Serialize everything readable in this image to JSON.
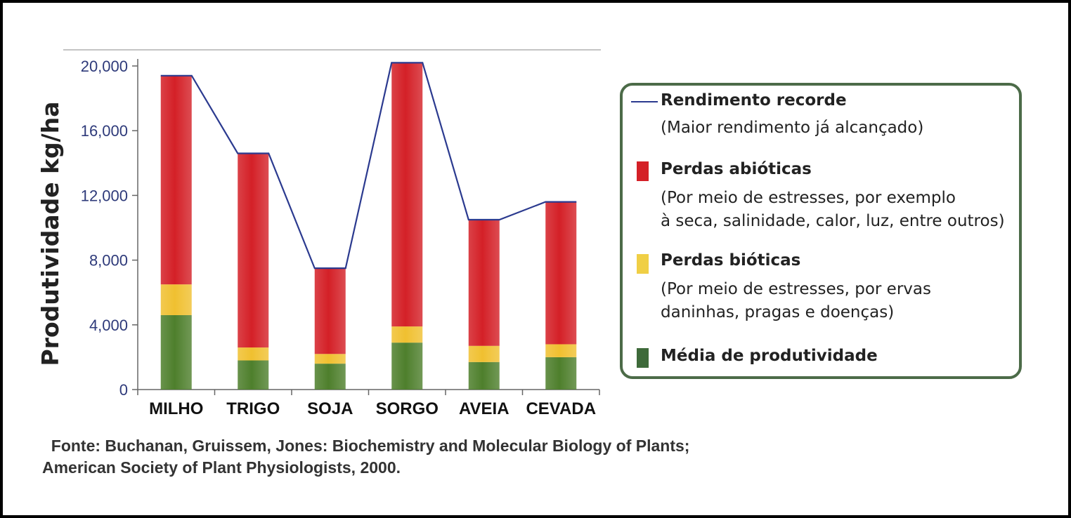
{
  "chart_data": {
    "type": "bar",
    "stacked": true,
    "categories": [
      "MILHO",
      "TRIGO",
      "SOJA",
      "SORGO",
      "AVEIA",
      "CEVADA"
    ],
    "series": [
      {
        "name": "Média de produtividade",
        "color": "#4e7f2c",
        "values": [
          4600,
          1800,
          1600,
          2900,
          1700,
          2000
        ]
      },
      {
        "name": "Perdas bióticas",
        "color": "#f0c030",
        "values": [
          1900,
          800,
          600,
          1000,
          1000,
          800
        ]
      },
      {
        "name": "Perdas abióticas",
        "color": "#d42027",
        "values": [
          12900,
          12000,
          5300,
          16300,
          7800,
          8800
        ]
      }
    ],
    "line": {
      "name": "Rendimento recorde",
      "color": "#2b3a8f",
      "values": [
        19400,
        14600,
        7500,
        20200,
        10500,
        11600
      ]
    },
    "ylabel": "Produtividade kg/ha",
    "ylim": [
      0,
      20000
    ],
    "yticks": [
      "0",
      "4,000",
      "8,000",
      "12,000",
      "16,000",
      "20,000"
    ],
    "ytick_values": [
      0,
      4000,
      8000,
      12000,
      16000,
      20000
    ]
  },
  "legend": {
    "record_title": "Rendimento recorde",
    "record_desc": "(Maior rendimento já alcançado)",
    "abiotic_title": "Perdas abióticas",
    "abiotic_desc": "(Por meio de estresses, por exemplo\nà seca, salinidade, calor, luz, entre outros)",
    "biotic_title": "Perdas bióticas",
    "biotic_desc": "(Por meio de estresses, por ervas\ndaninhas, pragas e doenças)",
    "average_title": "Média de produtividade"
  },
  "source": {
    "line1": "  Fonte: Buchanan, Gruissem, Jones: Biochemistry and Molecular Biology of Plants;",
    "line2": "American Society of Plant Physiologists, 2000."
  }
}
